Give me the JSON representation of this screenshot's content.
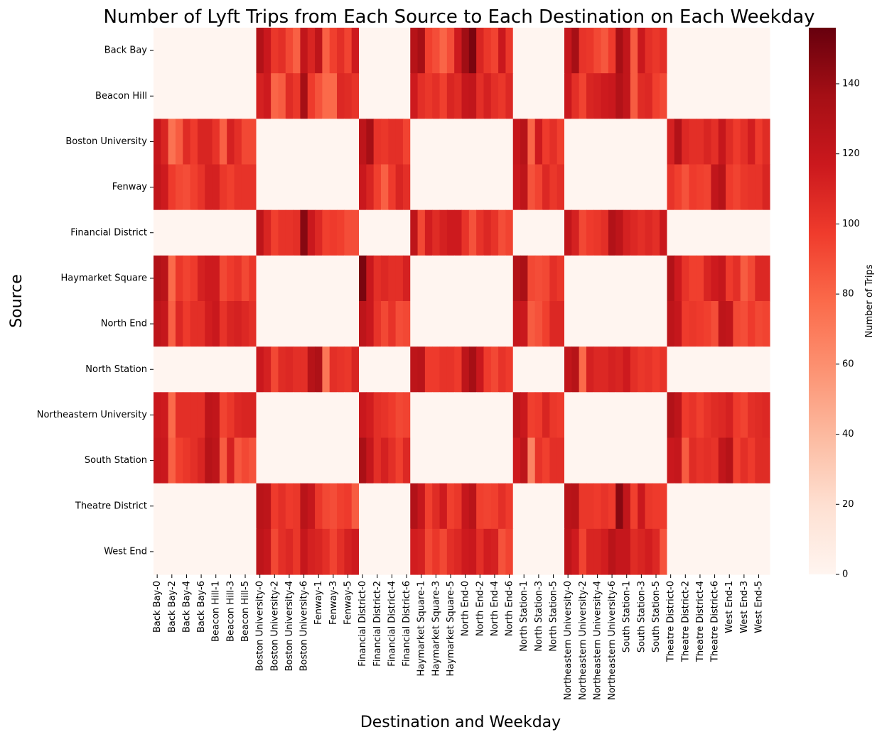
{
  "chart_data": {
    "type": "heatmap",
    "title": "Number of Lyft Trips from Each Source to Each Destination on Each Weekday",
    "xlabel": "Destination and Weekday",
    "ylabel": "Source",
    "colorbar_label": "Number of Trips",
    "colormap": "Reds",
    "vmin": 0,
    "vmax": 156,
    "colorbar_ticks": [
      0,
      20,
      40,
      60,
      80,
      100,
      120,
      140
    ],
    "grid": false,
    "legend_position": "right colorbar",
    "rows": [
      "Back Bay",
      "Beacon Hill",
      "Boston University",
      "Fenway",
      "Financial District",
      "Haymarket Square",
      "North End",
      "North Station",
      "Northeastern University",
      "South Station",
      "Theatre District",
      "West End"
    ],
    "destinations": [
      "Back Bay",
      "Beacon Hill",
      "Boston University",
      "Fenway",
      "Financial District",
      "Haymarket Square",
      "North End",
      "North Station",
      "Northeastern University",
      "South Station",
      "Theatre District",
      "West End"
    ],
    "weekdays": [
      0,
      1,
      2,
      3,
      4,
      5,
      6
    ],
    "x_tick_labels": [
      "Back Bay-0",
      "Back Bay-2",
      "Back Bay-4",
      "Back Bay-6",
      "Beacon Hill-1",
      "Beacon Hill-3",
      "Beacon Hill-5",
      "Boston University-0",
      "Boston University-2",
      "Boston University-4",
      "Boston University-6",
      "Fenway-1",
      "Fenway-3",
      "Fenway-5",
      "Financial District-0",
      "Financial District-2",
      "Financial District-4",
      "Financial District-6",
      "Haymarket Square-1",
      "Haymarket Square-3",
      "Haymarket Square-5",
      "North End-0",
      "North End-2",
      "North End-4",
      "North End-6",
      "North Station-1",
      "North Station-3",
      "North Station-5",
      "Northeastern University-0",
      "Northeastern University-2",
      "Northeastern University-4",
      "Northeastern University-6",
      "South Station-1",
      "South Station-3",
      "South Station-5",
      "Theatre District-0",
      "Theatre District-2",
      "Theatre District-4",
      "Theatre District-6",
      "West End-1",
      "West End-3",
      "West End-5"
    ],
    "values": [
      [
        0,
        0,
        0,
        0,
        0,
        0,
        0,
        0,
        0,
        0,
        0,
        0,
        0,
        0,
        130,
        118,
        100,
        104,
        92,
        82,
        122,
        110,
        124,
        82,
        96,
        104,
        94,
        116,
        0,
        0,
        0,
        0,
        0,
        0,
        0,
        128,
        136,
        96,
        90,
        80,
        90,
        116,
        138,
        150,
        110,
        100,
        94,
        118,
        100,
        0,
        0,
        0,
        0,
        0,
        0,
        0,
        120,
        136,
        102,
        100,
        92,
        86,
        98,
        136,
        122,
        84,
        118,
        104,
        100,
        104,
        0,
        0,
        0,
        0,
        0,
        0,
        0,
        0,
        0,
        0,
        0,
        0,
        0,
        0
      ],
      [
        0,
        0,
        0,
        0,
        0,
        0,
        0,
        0,
        0,
        0,
        0,
        0,
        0,
        0,
        112,
        116,
        80,
        84,
        106,
        100,
        136,
        98,
        88,
        78,
        78,
        108,
        106,
        102,
        0,
        0,
        0,
        0,
        0,
        0,
        0,
        116,
        104,
        100,
        104,
        96,
        110,
        106,
        120,
        122,
        104,
        112,
        104,
        100,
        108,
        0,
        0,
        0,
        0,
        0,
        0,
        0,
        118,
        104,
        94,
        110,
        112,
        116,
        118,
        130,
        122,
        84,
        106,
        108,
        96,
        92,
        0,
        0,
        0,
        0,
        0,
        0,
        0,
        0,
        0,
        0,
        0,
        0,
        0,
        0
      ],
      [
        120,
        110,
        74,
        84,
        106,
        98,
        110,
        110,
        102,
        82,
        112,
        104,
        92,
        92,
        0,
        0,
        0,
        0,
        0,
        0,
        0,
        0,
        0,
        0,
        0,
        0,
        0,
        0,
        124,
        136,
        102,
        100,
        104,
        104,
        94,
        0,
        0,
        0,
        0,
        0,
        0,
        0,
        0,
        0,
        0,
        0,
        0,
        0,
        0,
        120,
        128,
        80,
        116,
        98,
        104,
        96,
        0,
        0,
        0,
        0,
        0,
        0,
        0,
        0,
        0,
        0,
        0,
        0,
        0,
        0,
        112,
        130,
        108,
        104,
        104,
        110,
        104,
        120,
        106,
        98,
        104,
        114,
        98,
        106
      ],
      [
        122,
        116,
        98,
        92,
        90,
        96,
        102,
        112,
        112,
        100,
        96,
        102,
        102,
        102,
        0,
        0,
        0,
        0,
        0,
        0,
        0,
        0,
        0,
        0,
        0,
        0,
        0,
        0,
        118,
        110,
        96,
        82,
        98,
        110,
        104,
        0,
        0,
        0,
        0,
        0,
        0,
        0,
        0,
        0,
        0,
        0,
        0,
        0,
        0,
        118,
        124,
        88,
        94,
        108,
        100,
        104,
        0,
        0,
        0,
        0,
        0,
        0,
        0,
        0,
        0,
        0,
        0,
        0,
        0,
        0,
        102,
        96,
        88,
        98,
        96,
        94,
        122,
        128,
        98,
        94,
        100,
        102,
        102,
        110
      ],
      [
        0,
        0,
        0,
        0,
        0,
        0,
        0,
        0,
        0,
        0,
        0,
        0,
        0,
        0,
        124,
        110,
        96,
        102,
        102,
        104,
        146,
        118,
        108,
        96,
        98,
        96,
        90,
        90,
        0,
        0,
        0,
        0,
        0,
        0,
        0,
        124,
        92,
        114,
        106,
        112,
        116,
        116,
        102,
        88,
        102,
        108,
        102,
        90,
        94,
        0,
        0,
        0,
        0,
        0,
        0,
        0,
        122,
        112,
        92,
        98,
        100,
        104,
        130,
        124,
        112,
        108,
        104,
        108,
        104,
        118,
        0,
        0,
        0,
        0,
        0,
        0,
        0,
        0,
        0,
        0,
        0,
        0,
        0,
        0
      ],
      [
        130,
        126,
        78,
        100,
        94,
        98,
        112,
        116,
        116,
        92,
        98,
        102,
        92,
        100,
        0,
        0,
        0,
        0,
        0,
        0,
        0,
        0,
        0,
        0,
        0,
        0,
        0,
        0,
        150,
        118,
        104,
        108,
        104,
        104,
        112,
        0,
        0,
        0,
        0,
        0,
        0,
        0,
        0,
        0,
        0,
        0,
        0,
        0,
        0,
        130,
        134,
        92,
        90,
        92,
        104,
        100,
        0,
        0,
        0,
        0,
        0,
        0,
        0,
        0,
        0,
        0,
        0,
        0,
        0,
        0,
        130,
        116,
        102,
        96,
        96,
        110,
        116,
        120,
        98,
        104,
        84,
        92,
        108,
        108
      ],
      [
        124,
        120,
        82,
        108,
        98,
        104,
        104,
        114,
        118,
        102,
        110,
        112,
        108,
        104,
        0,
        0,
        0,
        0,
        0,
        0,
        0,
        0,
        0,
        0,
        0,
        0,
        0,
        0,
        124,
        118,
        102,
        92,
        102,
        90,
        92,
        0,
        0,
        0,
        0,
        0,
        0,
        0,
        0,
        0,
        0,
        0,
        0,
        0,
        0,
        120,
        118,
        84,
        88,
        96,
        108,
        108,
        0,
        0,
        0,
        0,
        0,
        0,
        0,
        0,
        0,
        0,
        0,
        0,
        0,
        0,
        124,
        120,
        98,
        100,
        98,
        96,
        90,
        124,
        122,
        92,
        90,
        98,
        92,
        94
      ],
      [
        0,
        0,
        0,
        0,
        0,
        0,
        0,
        0,
        0,
        0,
        0,
        0,
        0,
        0,
        118,
        112,
        92,
        106,
        108,
        104,
        104,
        128,
        132,
        72,
        104,
        102,
        100,
        110,
        0,
        0,
        0,
        0,
        0,
        0,
        0,
        124,
        126,
        98,
        98,
        102,
        102,
        98,
        124,
        136,
        118,
        98,
        92,
        102,
        98,
        0,
        0,
        0,
        0,
        0,
        0,
        0,
        122,
        128,
        78,
        112,
        108,
        108,
        112,
        110,
        116,
        104,
        100,
        102,
        98,
        102,
        0,
        0,
        0,
        0,
        0,
        0,
        0,
        0,
        0,
        0,
        0,
        0,
        0,
        0
      ],
      [
        118,
        116,
        78,
        104,
        104,
        104,
        104,
        124,
        122,
        94,
        100,
        108,
        110,
        110,
        0,
        0,
        0,
        0,
        0,
        0,
        0,
        0,
        0,
        0,
        0,
        0,
        0,
        0,
        118,
        114,
        104,
        102,
        98,
        92,
        94,
        0,
        0,
        0,
        0,
        0,
        0,
        0,
        0,
        0,
        0,
        0,
        0,
        0,
        0,
        124,
        118,
        96,
        98,
        110,
        100,
        98,
        0,
        0,
        0,
        0,
        0,
        0,
        0,
        0,
        0,
        0,
        0,
        0,
        0,
        0,
        130,
        124,
        98,
        102,
        96,
        102,
        106,
        108,
        112,
        98,
        94,
        104,
        106,
        108
      ],
      [
        120,
        118,
        82,
        96,
        100,
        104,
        110,
        128,
        124,
        84,
        112,
        86,
        92,
        88,
        0,
        0,
        0,
        0,
        0,
        0,
        0,
        0,
        0,
        0,
        0,
        0,
        0,
        0,
        134,
        120,
        104,
        112,
        104,
        96,
        108,
        0,
        0,
        0,
        0,
        0,
        0,
        0,
        0,
        0,
        0,
        0,
        0,
        0,
        0,
        116,
        124,
        66,
        102,
        96,
        104,
        104,
        0,
        0,
        0,
        0,
        0,
        0,
        0,
        0,
        0,
        0,
        0,
        0,
        0,
        0,
        118,
        120,
        84,
        106,
        102,
        104,
        102,
        122,
        128,
        96,
        104,
        98,
        106,
        106
      ],
      [
        0,
        0,
        0,
        0,
        0,
        0,
        0,
        0,
        0,
        0,
        0,
        0,
        0,
        0,
        126,
        124,
        98,
        104,
        98,
        100,
        126,
        120,
        100,
        92,
        90,
        96,
        98,
        84,
        0,
        0,
        0,
        0,
        0,
        0,
        0,
        130,
        120,
        96,
        106,
        116,
        96,
        100,
        120,
        126,
        96,
        94,
        96,
        104,
        98,
        0,
        0,
        0,
        0,
        0,
        0,
        0,
        126,
        128,
        100,
        100,
        98,
        102,
        98,
        146,
        122,
        96,
        118,
        100,
        98,
        98,
        0,
        0,
        0,
        0,
        0,
        0,
        0,
        0,
        0,
        0,
        0,
        0,
        0,
        0
      ],
      [
        0,
        0,
        0,
        0,
        0,
        0,
        0,
        0,
        0,
        0,
        0,
        0,
        0,
        0,
        124,
        120,
        92,
        104,
        108,
        100,
        120,
        112,
        110,
        104,
        94,
        104,
        112,
        116,
        0,
        0,
        0,
        0,
        0,
        0,
        0,
        114,
        112,
        92,
        100,
        92,
        104,
        108,
        116,
        118,
        104,
        114,
        112,
        88,
        94,
        0,
        0,
        0,
        0,
        0,
        0,
        0,
        124,
        116,
        94,
        110,
        110,
        114,
        126,
        120,
        120,
        106,
        110,
        114,
        108,
        88,
        0,
        0,
        0,
        0,
        0,
        0,
        0,
        0,
        0,
        0,
        0,
        0,
        0,
        0
      ]
    ]
  }
}
